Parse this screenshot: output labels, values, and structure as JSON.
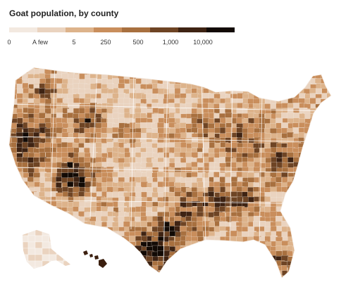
{
  "title": "Goat population, by county",
  "legend": {
    "labels": [
      "0",
      "A few",
      "5",
      "250",
      "500",
      "1,000",
      "10,000"
    ],
    "colors": [
      "#f3e9e0",
      "#ead3bf",
      "#ddb38b",
      "#c98e5c",
      "#a8703f",
      "#6e4424",
      "#3e2313",
      "#120a05"
    ]
  },
  "map": {
    "regions": [
      "contiguous-us",
      "alaska",
      "hawaii"
    ]
  }
}
